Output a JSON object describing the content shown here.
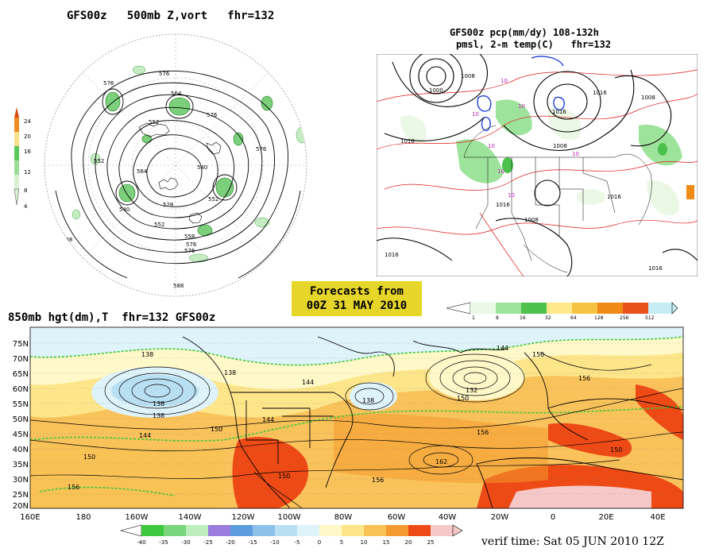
{
  "panel_500mb": {
    "title": "GFS00z   500mb Z,vort   fhr=132",
    "scale_labels": [
      "24",
      "20",
      "16",
      "12",
      "8",
      "4"
    ],
    "scale_colors": [
      "#d24b12",
      "#f08a22",
      "#f8e08a",
      "#58c858",
      "#9ddc96",
      "#d8f0d2"
    ],
    "contour_labels": [
      "576",
      "576",
      "564",
      "576",
      "552",
      "540",
      "540",
      "552",
      "528",
      "576",
      "576",
      "552",
      "588",
      "564",
      "558",
      "576",
      "588",
      "552"
    ]
  },
  "panel_precip": {
    "title_line1": "GFS00z pcp(mm/dy) 108-132h",
    "title_line2": "pmsl, 2-m temp(C)   fhr=132",
    "pressure_labels": [
      "1000",
      "1008",
      "1016",
      "1016",
      "1008",
      "1016",
      "1008",
      "1016",
      "1008",
      "1016",
      "1016",
      "1016"
    ],
    "temp_labels": [
      "10",
      "10",
      "10",
      "10",
      "10",
      "10",
      "10"
    ],
    "legend_labels": [
      "1",
      "8",
      "16",
      "32",
      "64",
      "128",
      "256",
      "512"
    ],
    "legend_colors": [
      "#ecf8e6",
      "#9ee39b",
      "#4cc24c",
      "#ffe98a",
      "#f5c242",
      "#f08a16",
      "#e9521b",
      "#c6ecf4"
    ]
  },
  "forecast_badge": {
    "line1": "Forecasts from",
    "line2": "00Z 31 MAY 2010"
  },
  "panel_850mb": {
    "title": "850mb hgt(dm),T  fhr=132 GFS00z",
    "lat_labels": [
      "75N",
      "70N",
      "65N",
      "60N",
      "55N",
      "50N",
      "45N",
      "40N",
      "35N",
      "30N",
      "25N",
      "20N"
    ],
    "lon_labels": [
      "160E",
      "180",
      "160W",
      "140W",
      "120W",
      "100W",
      "80W",
      "60W",
      "40W",
      "20W",
      "0",
      "20E",
      "40E"
    ],
    "height_labels": [
      "138",
      "138",
      "138",
      "144",
      "138",
      "144",
      "144",
      "132",
      "150",
      "138",
      "144",
      "150",
      "150",
      "156",
      "156",
      "150",
      "150",
      "156",
      "162",
      "156",
      "150"
    ],
    "temp_legend_labels": [
      "-40",
      "-35",
      "-30",
      "-25",
      "-20",
      "-15",
      "-10",
      "-5",
      "0",
      "5",
      "10",
      "15",
      "20",
      "25"
    ],
    "temp_legend_colors": [
      "#3dc83d",
      "#7ad67a",
      "#bfeebd",
      "#9a7ddf",
      "#5c9de0",
      "#8cc2ea",
      "#b9dff2",
      "#dff3fa",
      "#fff8c8",
      "#fde58a",
      "#f8c255",
      "#f59a2e",
      "#ee4a16",
      "#f6c8c8"
    ]
  },
  "verif_time": "verif time: Sat 05 JUN 2010 12Z"
}
